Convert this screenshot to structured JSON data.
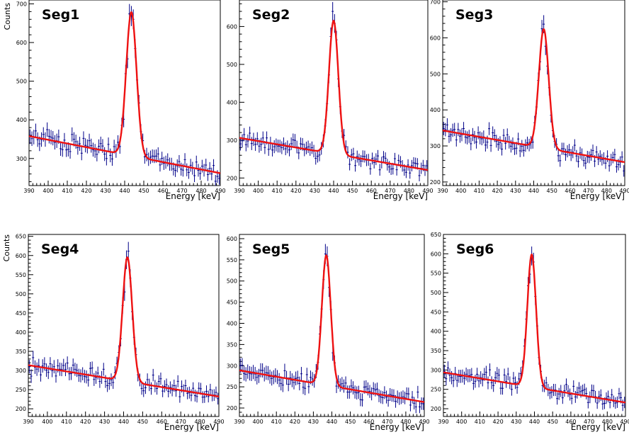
{
  "chart_data": [
    {
      "type": "scatter",
      "panel_label": "Seg1",
      "xlabel": "Energy [keV]",
      "ylabel": "Counts",
      "xlim": [
        390,
        490
      ],
      "xticks": [
        390,
        400,
        410,
        420,
        430,
        440,
        450,
        460,
        470,
        480,
        490
      ],
      "ylim": [
        230,
        710
      ],
      "yticks": [
        300,
        400,
        500,
        600,
        700
      ],
      "fit": {
        "b0": 358,
        "b1": -0.96,
        "amp": 372,
        "mu": 443.5,
        "sigma": 2.7
      },
      "points_per_bin": 0
    },
    {
      "type": "scatter",
      "panel_label": "Seg2",
      "xlabel": "Energy [keV]",
      "ylabel": "",
      "xlim": [
        390,
        490
      ],
      "xticks": [
        390,
        400,
        410,
        420,
        430,
        440,
        450,
        460,
        470,
        480,
        490
      ],
      "ylim": [
        180,
        670
      ],
      "yticks": [
        200,
        300,
        400,
        500,
        600
      ],
      "fit": {
        "b0": 306,
        "b1": -0.85,
        "amp": 352,
        "mu": 440,
        "sigma": 2.5
      }
    },
    {
      "type": "scatter",
      "panel_label": "Seg3",
      "xlabel": "Energy [keV]",
      "ylabel": "",
      "xlim": [
        390,
        490
      ],
      "xticks": [
        390,
        400,
        410,
        420,
        430,
        440,
        450,
        460,
        470,
        480,
        490
      ],
      "ylim": [
        190,
        705
      ],
      "yticks": [
        200,
        300,
        400,
        500,
        600,
        700
      ],
      "fit": {
        "b0": 343,
        "b1": -0.88,
        "amp": 330,
        "mu": 445.5,
        "sigma": 2.7
      }
    },
    {
      "type": "scatter",
      "panel_label": "Seg4",
      "xlabel": "Energy [keV]",
      "ylabel": "Counts",
      "xlim": [
        390,
        490
      ],
      "xticks": [
        390,
        400,
        410,
        420,
        430,
        440,
        450,
        460,
        470,
        480,
        490
      ],
      "ylim": [
        180,
        655
      ],
      "yticks": [
        200,
        250,
        300,
        350,
        400,
        450,
        500,
        550,
        600,
        650
      ],
      "fit": {
        "b0": 314,
        "b1": -0.82,
        "amp": 324,
        "mu": 442,
        "sigma": 2.5
      }
    },
    {
      "type": "scatter",
      "panel_label": "Seg5",
      "xlabel": "Energy [keV]",
      "ylabel": "",
      "xlim": [
        390,
        490
      ],
      "xticks": [
        390,
        400,
        410,
        420,
        430,
        440,
        450,
        460,
        470,
        480,
        490
      ],
      "ylim": [
        180,
        610
      ],
      "yticks": [
        200,
        250,
        300,
        350,
        400,
        450,
        500,
        550,
        600
      ],
      "fit": {
        "b0": 289,
        "b1": -0.75,
        "amp": 307,
        "mu": 437,
        "sigma": 2.4
      }
    },
    {
      "type": "scatter",
      "panel_label": "Seg6",
      "xlabel": "Energy [keV]",
      "ylabel": "",
      "xlim": [
        390,
        490
      ],
      "xticks": [
        390,
        400,
        410,
        420,
        430,
        440,
        450,
        460,
        470,
        480,
        490
      ],
      "ylim": [
        180,
        650
      ],
      "yticks": [
        200,
        250,
        300,
        350,
        400,
        450,
        500,
        550,
        600,
        650
      ],
      "fit": {
        "b0": 294,
        "b1": -0.78,
        "amp": 342,
        "mu": 438.5,
        "sigma": 2.4
      }
    }
  ],
  "colors": {
    "data": "#000088",
    "fit": "#ee1111",
    "frame": "#000000"
  }
}
